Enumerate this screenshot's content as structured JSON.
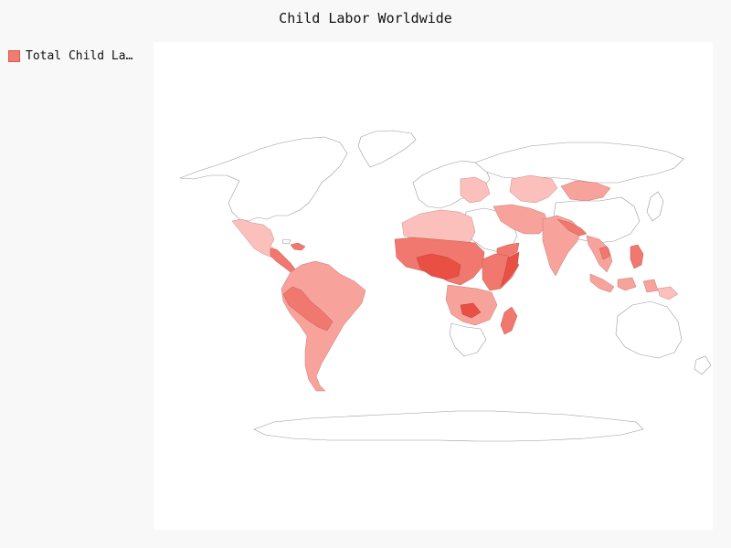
{
  "title": "Child Labor Worldwide",
  "legend": {
    "label": "Total Child Labor",
    "color": "#f17c72"
  },
  "map": {
    "projection": "equirectangular",
    "background": "#ffffff",
    "land_color": "#ffffff",
    "border_color": "#9a9a9a",
    "color_scale": [
      "#fbc0bb",
      "#f7a29b",
      "#f1786e",
      "#ea4f43"
    ]
  }
}
